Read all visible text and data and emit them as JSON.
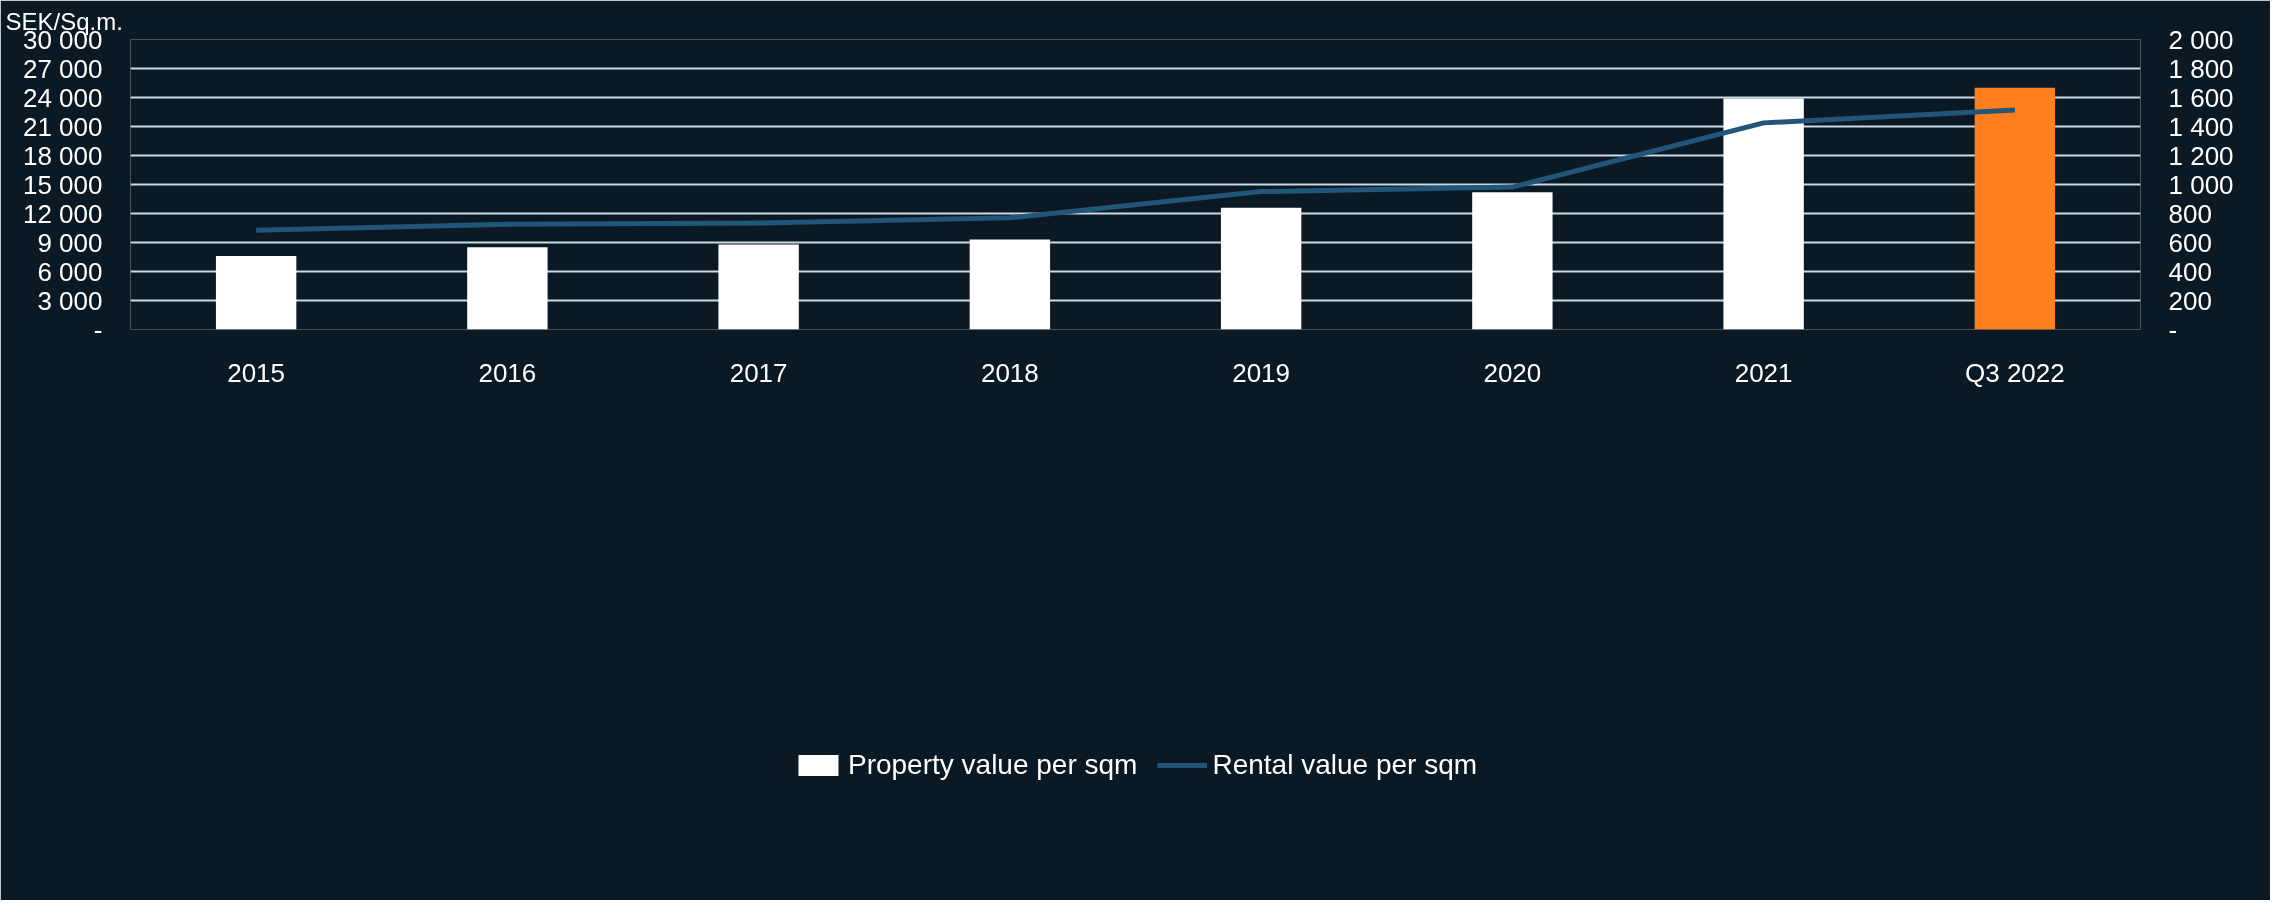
{
  "chart_data": {
    "type": "bar",
    "ylabel": "SEK/Sq.m.",
    "categories": [
      "2015",
      "2016",
      "2017",
      "2018",
      "2019",
      "2020",
      "2021",
      "Q3 2022"
    ],
    "series": [
      {
        "name": "Property value per sqm",
        "color": "#ffffff",
        "colors": [
          "#ffffff",
          "#ffffff",
          "#ffffff",
          "#ffffff",
          "#ffffff",
          "#ffffff",
          "#ffffff",
          "#ff7f20"
        ],
        "values": [
          7600,
          8500,
          8800,
          9300,
          12600,
          14200,
          23900,
          25000
        ]
      },
      {
        "name": "Rental value per sqm",
        "type": "line",
        "axis": "y2",
        "color": "#22557a",
        "values": [
          685,
          726,
          734,
          770,
          951,
          982,
          1425,
          1513
        ]
      }
    ],
    "ylim": [
      0,
      30000
    ],
    "yticks": [
      {
        "value": 0,
        "label": "-"
      },
      {
        "value": 3000,
        "label": "3 000"
      },
      {
        "value": 6000,
        "label": "6 000"
      },
      {
        "value": 9000,
        "label": "9 000"
      },
      {
        "value": 12000,
        "label": "12 000"
      },
      {
        "value": 15000,
        "label": "15 000"
      },
      {
        "value": 18000,
        "label": "18 000"
      },
      {
        "value": 21000,
        "label": "21 000"
      },
      {
        "value": 24000,
        "label": "24 000"
      },
      {
        "value": 27000,
        "label": "27 000"
      },
      {
        "value": 30000,
        "label": "30 000"
      }
    ],
    "y2lim": [
      0,
      2000
    ],
    "y2ticks": [
      {
        "value": 0,
        "label": "-"
      },
      200,
      400,
      600,
      800,
      {
        "value": 1000,
        "label": "1 000"
      },
      {
        "value": 1200,
        "label": "1 200"
      },
      {
        "value": 1400,
        "label": "1 400"
      },
      {
        "value": 1600,
        "label": "1 600"
      },
      {
        "value": 1800,
        "label": "1 800"
      },
      {
        "value": 2000,
        "label": "2 000"
      }
    ],
    "grid": "y",
    "legend": "bottom",
    "marker": "none",
    "line_style": "solid"
  }
}
